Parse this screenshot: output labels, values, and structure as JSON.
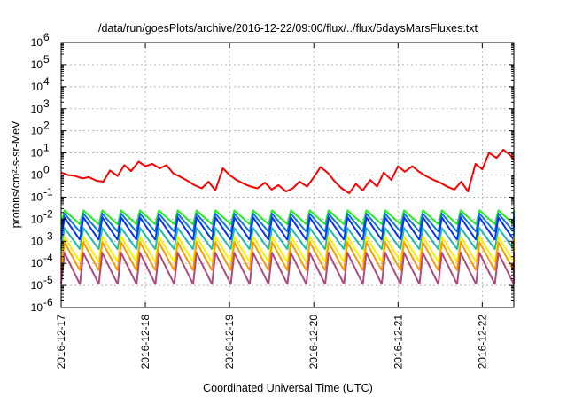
{
  "chart_data": {
    "type": "line",
    "title": "/data/run/goesPlots/archive/2016-12-22/09:00/flux/../flux/5daysMarsFluxes.txt",
    "xlabel": "Coordinated Universal Time (UTC)",
    "ylabel": "protons/cm²-s-sr-MeV",
    "y_scale": "log",
    "ylim_exp": [
      -6,
      6
    ],
    "xlim": [
      "2016-12-17 00:00",
      "2016-12-22 09:00"
    ],
    "xticks": [
      "2016-12-17",
      "2016-12-18",
      "2016-12-19",
      "2016-12-20",
      "2016-12-21",
      "2016-12-22"
    ],
    "grid": true,
    "legend": "none",
    "series": [
      {
        "color": "#ff0000",
        "x_days": [
          0.0,
          0.08,
          0.17,
          0.25,
          0.33,
          0.42,
          0.5,
          0.58,
          0.67,
          0.75,
          0.83,
          0.92,
          1.0,
          1.08,
          1.17,
          1.25,
          1.33,
          1.42,
          1.5,
          1.58,
          1.67,
          1.75,
          1.83,
          1.92,
          2.0,
          2.08,
          2.17,
          2.25,
          2.33,
          2.42,
          2.5,
          2.58,
          2.67,
          2.75,
          2.83,
          2.92,
          3.0,
          3.08,
          3.17,
          3.25,
          3.33,
          3.42,
          3.5,
          3.58,
          3.67,
          3.75,
          3.83,
          3.92,
          4.0,
          4.08,
          4.17,
          4.25,
          4.33,
          4.42,
          4.5,
          4.58,
          4.67,
          4.75,
          4.83,
          4.92,
          5.0,
          5.08,
          5.17,
          5.25,
          5.33,
          5.375
        ],
        "y_values": [
          1.3,
          1.0,
          0.9,
          0.7,
          0.8,
          0.55,
          0.5,
          1.6,
          0.9,
          2.8,
          1.5,
          4.0,
          2.5,
          3.2,
          2.0,
          2.8,
          1.2,
          0.8,
          0.55,
          0.35,
          0.25,
          0.5,
          0.2,
          2.0,
          1.0,
          0.6,
          0.4,
          0.3,
          0.25,
          0.45,
          0.22,
          0.35,
          0.18,
          0.25,
          0.5,
          0.3,
          0.8,
          2.3,
          1.2,
          0.5,
          0.25,
          0.15,
          0.4,
          0.2,
          0.6,
          0.3,
          1.3,
          0.6,
          2.5,
          1.4,
          2.5,
          1.4,
          0.9,
          0.6,
          0.45,
          0.3,
          0.22,
          0.5,
          0.18,
          3.2,
          1.8,
          10.0,
          6.0,
          14.0,
          8.0,
          5.0
        ],
        "tail_x_days": [
          5.375
        ],
        "tail_y_values": [
          2.4
        ]
      }
    ],
    "sawtooth_series": [
      {
        "color": "#22ee22",
        "peak": 0.025,
        "trough": 0.006,
        "peaks": 24
      },
      {
        "color": "#1177dd",
        "peak": 0.018,
        "trough": 0.0028,
        "peaks": 24
      },
      {
        "color": "#0033ff",
        "peak": 0.012,
        "trough": 0.0012,
        "peaks": 24
      },
      {
        "color": "#22bbaa",
        "peak": 0.004,
        "trough": 0.00045,
        "peaks": 24
      },
      {
        "color": "#ffee00",
        "peak": 0.0016,
        "trough": 0.00012,
        "peaks": 24
      },
      {
        "color": "#ff9900",
        "peak": 0.0009,
        "trough": 5e-05,
        "peaks": 24
      },
      {
        "color": "#b04a7a",
        "peak": 0.0003,
        "trough": 1.2e-05,
        "peaks": 24
      }
    ]
  }
}
